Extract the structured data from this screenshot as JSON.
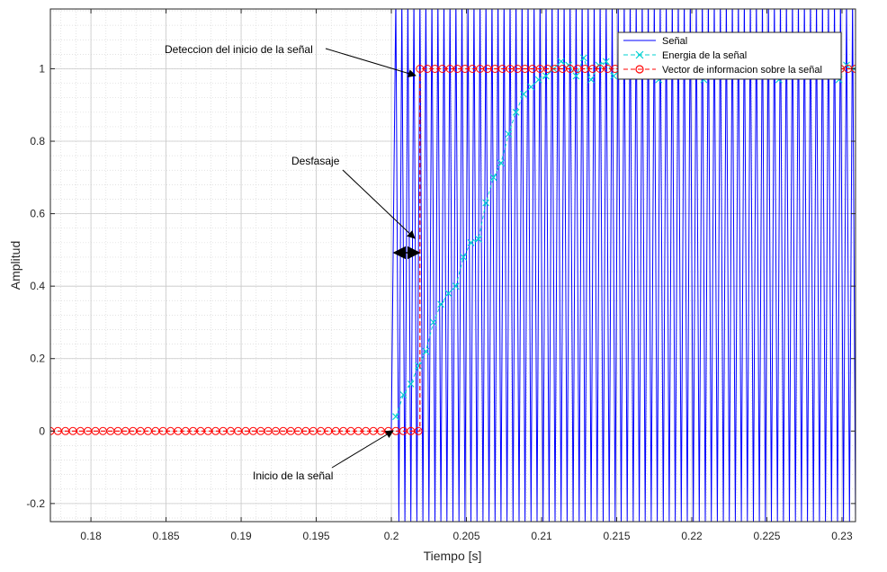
{
  "chart_data": {
    "type": "line",
    "title": "",
    "xlabel": "Tiempo [s]",
    "ylabel": "Amplitud",
    "xlim": [
      0.1773,
      0.2309
    ],
    "ylim": [
      -0.25,
      1.165
    ],
    "x_ticks": [
      0.18,
      0.185,
      0.19,
      0.195,
      0.2,
      0.205,
      0.21,
      0.215,
      0.22,
      0.225,
      0.23
    ],
    "x_tick_labels": [
      "0.18",
      "0.185",
      "0.19",
      "0.195",
      "0.2",
      "0.205",
      "0.21",
      "0.215",
      "0.22",
      "0.225",
      "0.23"
    ],
    "y_ticks": [
      -0.2,
      0,
      0.2,
      0.4,
      0.6,
      0.8,
      1
    ],
    "y_tick_labels": [
      "-0.2",
      "0",
      "0.2",
      "0.4",
      "0.6",
      "0.8",
      "1"
    ],
    "grid": true,
    "minor_grid": true,
    "legend_position": "top-right",
    "series": [
      {
        "name": "Señal",
        "color": "#0000ff",
        "style": "solid",
        "marker": "none",
        "description": "oscillating signal starting at about 0.2 s",
        "x": [
          0.2,
          0.2003,
          0.2005,
          0.2007,
          0.2009,
          0.2011,
          0.2013,
          0.2015,
          0.2017,
          0.2019,
          0.2021,
          0.2023,
          0.2025,
          0.2027,
          0.2029,
          0.2031,
          0.2033,
          0.2035,
          0.2037,
          0.2039,
          0.2041,
          0.2043,
          0.2045,
          0.2047,
          0.2049,
          0.2051,
          0.2053,
          0.2055,
          0.2057,
          0.2059,
          0.2061,
          0.2063,
          0.2065,
          0.2067,
          0.2069,
          0.2071,
          0.2073,
          0.2075,
          0.2077,
          0.2079,
          0.2081,
          0.2083,
          0.2085,
          0.2087,
          0.2089,
          0.2091,
          0.2093,
          0.2095,
          0.2097,
          0.2099,
          0.2101,
          0.2103,
          0.2105,
          0.2107,
          0.2109,
          0.2111,
          0.2113,
          0.2115,
          0.2117,
          0.2119,
          0.2121,
          0.2123,
          0.2125,
          0.2127,
          0.2129,
          0.2131,
          0.2133,
          0.2135,
          0.2137,
          0.2139,
          0.2141,
          0.2143,
          0.2145,
          0.2147,
          0.2149,
          0.2151,
          0.2153,
          0.2155,
          0.2157,
          0.2159,
          0.2161,
          0.2163,
          0.2165,
          0.2167,
          0.2169,
          0.2171,
          0.2173,
          0.2175,
          0.2177,
          0.2179,
          0.2181,
          0.2183,
          0.2185,
          0.2187,
          0.2189,
          0.2191,
          0.2193,
          0.2195,
          0.2197,
          0.2199,
          0.2201,
          0.2203,
          0.2205,
          0.2207,
          0.2209,
          0.2211,
          0.2213,
          0.2215,
          0.2217,
          0.2219,
          0.2221,
          0.2223,
          0.2225,
          0.2227,
          0.2229,
          0.2231,
          0.2233,
          0.2235,
          0.2237,
          0.2239,
          0.2241,
          0.2243,
          0.2245,
          0.2247,
          0.2249,
          0.2251,
          0.2253,
          0.2255,
          0.2257,
          0.2259,
          0.2261,
          0.2263,
          0.2265,
          0.2267,
          0.2269,
          0.2271,
          0.2273,
          0.2275,
          0.2277,
          0.2279,
          0.2281,
          0.2283,
          0.2285,
          0.2287,
          0.2289,
          0.2291,
          0.2293,
          0.2295,
          0.2297,
          0.2299,
          0.2301,
          0.2303,
          0.2305,
          0.2307,
          0.2309
        ],
        "y": [
          0.0,
          1.2,
          -0.25,
          1.2,
          -0.25,
          1.2,
          -0.25,
          1.2,
          -0.25,
          1.2,
          -0.25,
          1.2,
          -0.25,
          1.2,
          -0.25,
          1.2,
          -0.25,
          1.2,
          -0.25,
          1.2,
          -0.25,
          1.2,
          -0.25,
          1.2,
          -0.25,
          1.2,
          -0.25,
          1.2,
          -0.25,
          1.2,
          -0.25,
          1.2,
          -0.25,
          1.2,
          -0.25,
          1.2,
          -0.25,
          1.2,
          -0.25,
          1.2,
          -0.25,
          1.2,
          -0.25,
          1.2,
          -0.25,
          1.2,
          -0.25,
          1.2,
          -0.25,
          1.2,
          -0.25,
          1.2,
          -0.25,
          1.2,
          -0.25,
          1.2,
          -0.25,
          1.2,
          -0.25,
          1.2,
          -0.25,
          1.2,
          -0.25,
          1.2,
          -0.25,
          1.2,
          -0.25,
          1.2,
          -0.25,
          1.2,
          -0.25,
          1.2,
          -0.25,
          1.2,
          -0.25,
          1.2,
          -0.25,
          1.2,
          -0.25,
          1.2,
          -0.25,
          1.2,
          -0.25,
          1.2,
          -0.25,
          1.2,
          -0.25,
          1.2,
          -0.25,
          1.2,
          -0.25,
          1.2,
          -0.25,
          1.2,
          -0.25,
          1.2,
          -0.25,
          1.2,
          -0.25,
          1.2,
          -0.25,
          1.2,
          -0.25,
          1.2,
          -0.25,
          1.2,
          -0.25,
          1.2,
          -0.25,
          1.2,
          -0.25,
          1.2,
          -0.25,
          1.2,
          -0.25,
          1.2,
          -0.25,
          1.2,
          -0.25,
          1.2,
          -0.25,
          1.2,
          -0.25,
          1.2,
          -0.25,
          1.2,
          -0.25,
          1.2,
          -0.25,
          1.2,
          -0.25,
          1.2,
          -0.25,
          1.2,
          -0.25,
          1.2,
          -0.25,
          1.2,
          -0.25,
          1.2,
          -0.25,
          1.2,
          -0.25,
          1.2,
          -0.25,
          1.2,
          -0.25,
          1.2,
          -0.25,
          1.2,
          -0.25,
          1.2,
          -0.25,
          1.2,
          -0.25
        ]
      },
      {
        "name": "Energia de la señal",
        "color": "#00d0d0",
        "style": "dashed",
        "marker": "x",
        "x": [
          0.2003,
          0.2008,
          0.2013,
          0.2018,
          0.2023,
          0.2028,
          0.2033,
          0.2038,
          0.2043,
          0.2048,
          0.2053,
          0.2058,
          0.2063,
          0.2068,
          0.2073,
          0.2078,
          0.2083,
          0.2088,
          0.2093,
          0.2098,
          0.2103,
          0.2108,
          0.2113,
          0.2118,
          0.2123,
          0.2128,
          0.2133,
          0.2138,
          0.2143,
          0.2148,
          0.2153,
          0.2158,
          0.2163,
          0.2168,
          0.2173,
          0.2178,
          0.2183,
          0.2188,
          0.2193,
          0.2198,
          0.2203,
          0.2208,
          0.2213,
          0.2218,
          0.2223,
          0.2228,
          0.2233,
          0.2238,
          0.2243,
          0.2248,
          0.2253,
          0.2258,
          0.2263,
          0.2268,
          0.2273,
          0.2278,
          0.2283,
          0.2288,
          0.2293,
          0.2298,
          0.2303,
          0.2308
        ],
        "y": [
          0.04,
          0.1,
          0.13,
          0.18,
          0.22,
          0.3,
          0.35,
          0.38,
          0.4,
          0.48,
          0.52,
          0.53,
          0.63,
          0.7,
          0.74,
          0.82,
          0.88,
          0.93,
          0.95,
          0.97,
          0.98,
          1.0,
          1.02,
          1.01,
          0.98,
          1.03,
          0.97,
          1.01,
          1.02,
          0.98,
          1.0,
          1.03,
          0.98,
          1.0,
          1.02,
          0.97,
          1.01,
          1.0,
          0.98,
          1.03,
          1.0,
          0.97,
          1.02,
          1.0,
          0.98,
          1.01,
          1.03,
          0.99,
          0.98,
          1.02,
          1.0,
          0.97,
          1.01,
          1.02,
          0.99,
          1.0,
          0.98,
          1.02,
          1.0,
          0.97,
          1.01,
          1.0
        ]
      },
      {
        "name": "Vector de informacion sobre la señal",
        "color": "#ff0000",
        "style": "dashed",
        "marker": "o",
        "x": [
          0.1773,
          0.1778,
          0.1783,
          0.1788,
          0.1793,
          0.1798,
          0.1803,
          0.1808,
          0.1813,
          0.1818,
          0.1823,
          0.1828,
          0.1833,
          0.1838,
          0.1843,
          0.1848,
          0.1853,
          0.1858,
          0.1863,
          0.1868,
          0.1873,
          0.1878,
          0.1883,
          0.1888,
          0.1893,
          0.1898,
          0.1903,
          0.1908,
          0.1913,
          0.1918,
          0.1923,
          0.1928,
          0.1933,
          0.1938,
          0.1943,
          0.1948,
          0.1953,
          0.1958,
          0.1963,
          0.1968,
          0.1973,
          0.1978,
          0.1983,
          0.1988,
          0.1993,
          0.1998,
          0.2003,
          0.2008,
          0.2013,
          0.2018,
          0.2019,
          0.2024,
          0.2029,
          0.2034,
          0.2039,
          0.2044,
          0.2049,
          0.2054,
          0.2059,
          0.2064,
          0.2069,
          0.2074,
          0.2079,
          0.2084,
          0.2089,
          0.2094,
          0.2099,
          0.2104,
          0.2109,
          0.2114,
          0.2119,
          0.2124,
          0.2129,
          0.2134,
          0.2139,
          0.2144,
          0.2149,
          0.2154,
          0.2159,
          0.2164,
          0.2169,
          0.2174,
          0.2179,
          0.2184,
          0.2189,
          0.2194,
          0.2199,
          0.2204,
          0.2209,
          0.2214,
          0.2219,
          0.2224,
          0.2229,
          0.2234,
          0.2239,
          0.2244,
          0.2249,
          0.2254,
          0.2259,
          0.2264,
          0.2269,
          0.2274,
          0.2279,
          0.2284,
          0.2289,
          0.2294,
          0.2299,
          0.2304,
          0.2309
        ],
        "y": [
          0,
          0,
          0,
          0,
          0,
          0,
          0,
          0,
          0,
          0,
          0,
          0,
          0,
          0,
          0,
          0,
          0,
          0,
          0,
          0,
          0,
          0,
          0,
          0,
          0,
          0,
          0,
          0,
          0,
          0,
          0,
          0,
          0,
          0,
          0,
          0,
          0,
          0,
          0,
          0,
          0,
          0,
          0,
          0,
          0,
          0,
          0,
          0,
          0,
          0,
          1,
          1,
          1,
          1,
          1,
          1,
          1,
          1,
          1,
          1,
          1,
          1,
          1,
          1,
          1,
          1,
          1,
          1,
          1,
          1,
          1,
          1,
          1,
          1,
          1,
          1,
          1,
          1,
          1,
          1,
          1,
          1,
          1,
          1,
          1,
          1,
          1,
          1,
          1,
          1,
          1,
          1,
          1,
          1,
          1,
          1,
          1,
          1,
          1,
          1,
          1,
          1,
          1,
          1,
          1,
          1,
          1,
          1,
          1
        ]
      }
    ],
    "annotations": [
      {
        "text": "Deteccion del inicio de la señal",
        "points_to": [
          0.2019,
          1.0
        ]
      },
      {
        "text": "Desfasaje",
        "points_to": [
          0.2018,
          0.575
        ]
      },
      {
        "text": "Inicio de la señal",
        "points_to": [
          0.2001,
          0.0
        ]
      }
    ],
    "phase_shift_marker": {
      "x_start": 0.20005,
      "x_end": 0.2021,
      "y": 0.505
    }
  }
}
